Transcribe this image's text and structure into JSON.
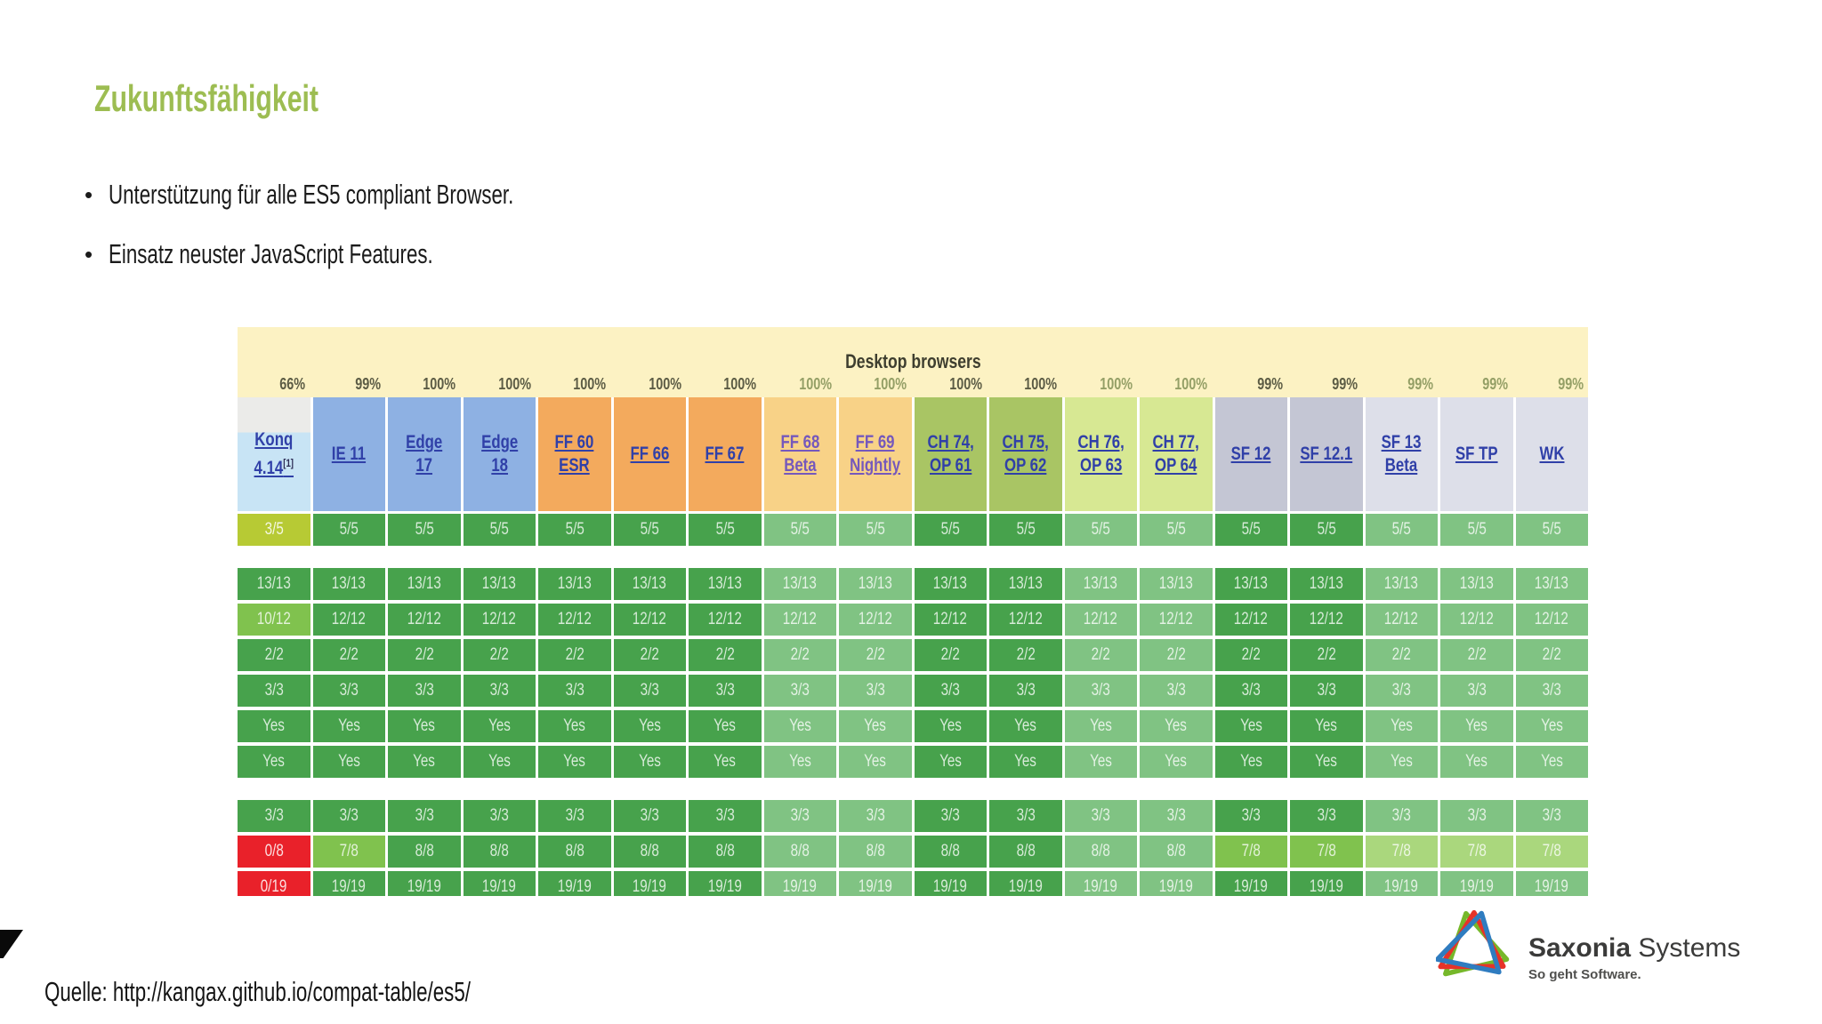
{
  "slide": {
    "title": "Zukunftsfähigkeit",
    "bullets": [
      "Unterstützung für alle ES5 compliant Browser.",
      "Einsatz neuster JavaScript Features."
    ],
    "source": "Quelle: http://kangax.github.io/compat-table/es5/"
  },
  "logo": {
    "brand_bold": "Saxonia",
    "brand_regular": " Systems",
    "tagline": "So geht Software.",
    "triangle_colors": [
      "#76b82a",
      "#e63329",
      "#2f7cc0"
    ]
  },
  "colors": {
    "title_green": "#9dbd52",
    "band_yellow": "#fcf2c3",
    "cell_green": "#47a24c",
    "cell_green_prerelease": "#80c383",
    "cell_partial": "#80c24e",
    "cell_partial_prerelease": "#aad77d",
    "cell_mid": "#b7ca34",
    "cell_fail_red": "#e9212a",
    "link_blue": "#3040a8",
    "link_purple": "#7558bc"
  },
  "table": {
    "title": "Desktop browsers",
    "columns": [
      {
        "label": "Konq\n4.14",
        "sup": "[1]",
        "percent": "66%",
        "family": "konq",
        "pre": false,
        "link": "blue"
      },
      {
        "label": "IE 11",
        "percent": "99%",
        "family": "ie",
        "pre": false,
        "link": "blue"
      },
      {
        "label": "Edge\n17",
        "percent": "100%",
        "family": "ie",
        "pre": false,
        "link": "blue"
      },
      {
        "label": "Edge\n18",
        "percent": "100%",
        "family": "ie",
        "pre": false,
        "link": "blue"
      },
      {
        "label": "FF 60\nESR",
        "percent": "100%",
        "family": "ff",
        "pre": false,
        "link": "blue"
      },
      {
        "label": "FF 66",
        "percent": "100%",
        "family": "ff",
        "pre": false,
        "link": "blue"
      },
      {
        "label": "FF 67",
        "percent": "100%",
        "family": "ff",
        "pre": false,
        "link": "blue"
      },
      {
        "label": "FF 68\nBeta",
        "percent": "100%",
        "family": "ff-pre",
        "pre": true,
        "link": "purple"
      },
      {
        "label": "FF 69\nNightly",
        "percent": "100%",
        "family": "ff-pre",
        "pre": true,
        "link": "purple"
      },
      {
        "label": "CH 74,\nOP 61",
        "percent": "100%",
        "family": "ch",
        "pre": false,
        "link": "blue"
      },
      {
        "label": "CH 75,\nOP 62",
        "percent": "100%",
        "family": "ch",
        "pre": false,
        "link": "blue"
      },
      {
        "label": "CH 76,\nOP 63",
        "percent": "100%",
        "family": "ch-pre",
        "pre": true,
        "link": "blue"
      },
      {
        "label": "CH 77,\nOP 64",
        "percent": "100%",
        "family": "ch-pre",
        "pre": true,
        "link": "blue"
      },
      {
        "label": "SF 12",
        "percent": "99%",
        "family": "sf",
        "pre": false,
        "link": "blue"
      },
      {
        "label": "SF 12.1",
        "percent": "99%",
        "family": "sf",
        "pre": false,
        "link": "blue"
      },
      {
        "label": "SF 13\nBeta",
        "percent": "99%",
        "family": "sf-pre",
        "pre": true,
        "link": "blue"
      },
      {
        "label": "SF TP",
        "percent": "99%",
        "family": "sf-pre",
        "pre": true,
        "link": "blue"
      },
      {
        "label": "WK",
        "percent": "99%",
        "family": "sf-pre",
        "pre": true,
        "link": "blue"
      }
    ],
    "groups": [
      {
        "rows": [
          [
            "3/5",
            "5/5",
            "5/5",
            "5/5",
            "5/5",
            "5/5",
            "5/5",
            "5/5",
            "5/5",
            "5/5",
            "5/5",
            "5/5",
            "5/5",
            "5/5",
            "5/5",
            "5/5",
            "5/5",
            "5/5"
          ]
        ]
      },
      {
        "rows": [
          [
            "13/13",
            "13/13",
            "13/13",
            "13/13",
            "13/13",
            "13/13",
            "13/13",
            "13/13",
            "13/13",
            "13/13",
            "13/13",
            "13/13",
            "13/13",
            "13/13",
            "13/13",
            "13/13",
            "13/13",
            "13/13"
          ],
          [
            "10/12",
            "12/12",
            "12/12",
            "12/12",
            "12/12",
            "12/12",
            "12/12",
            "12/12",
            "12/12",
            "12/12",
            "12/12",
            "12/12",
            "12/12",
            "12/12",
            "12/12",
            "12/12",
            "12/12",
            "12/12"
          ],
          [
            "2/2",
            "2/2",
            "2/2",
            "2/2",
            "2/2",
            "2/2",
            "2/2",
            "2/2",
            "2/2",
            "2/2",
            "2/2",
            "2/2",
            "2/2",
            "2/2",
            "2/2",
            "2/2",
            "2/2",
            "2/2"
          ],
          [
            "3/3",
            "3/3",
            "3/3",
            "3/3",
            "3/3",
            "3/3",
            "3/3",
            "3/3",
            "3/3",
            "3/3",
            "3/3",
            "3/3",
            "3/3",
            "3/3",
            "3/3",
            "3/3",
            "3/3",
            "3/3"
          ],
          [
            "Yes",
            "Yes",
            "Yes",
            "Yes",
            "Yes",
            "Yes",
            "Yes",
            "Yes",
            "Yes",
            "Yes",
            "Yes",
            "Yes",
            "Yes",
            "Yes",
            "Yes",
            "Yes",
            "Yes",
            "Yes"
          ],
          [
            "Yes",
            "Yes",
            "Yes",
            "Yes",
            "Yes",
            "Yes",
            "Yes",
            "Yes",
            "Yes",
            "Yes",
            "Yes",
            "Yes",
            "Yes",
            "Yes",
            "Yes",
            "Yes",
            "Yes",
            "Yes"
          ]
        ]
      },
      {
        "rows": [
          [
            "3/3",
            "3/3",
            "3/3",
            "3/3",
            "3/3",
            "3/3",
            "3/3",
            "3/3",
            "3/3",
            "3/3",
            "3/3",
            "3/3",
            "3/3",
            "3/3",
            "3/3",
            "3/3",
            "3/3",
            "3/3"
          ],
          [
            "0/8",
            "7/8",
            "8/8",
            "8/8",
            "8/8",
            "8/8",
            "8/8",
            "8/8",
            "8/8",
            "8/8",
            "8/8",
            "8/8",
            "8/8",
            "7/8",
            "7/8",
            "7/8",
            "7/8",
            "7/8"
          ],
          [
            "0/19",
            "19/19",
            "19/19",
            "19/19",
            "19/19",
            "19/19",
            "19/19",
            "19/19",
            "19/19",
            "19/19",
            "19/19",
            "19/19",
            "19/19",
            "19/19",
            "19/19",
            "19/19",
            "19/19",
            "19/19"
          ]
        ]
      }
    ]
  }
}
